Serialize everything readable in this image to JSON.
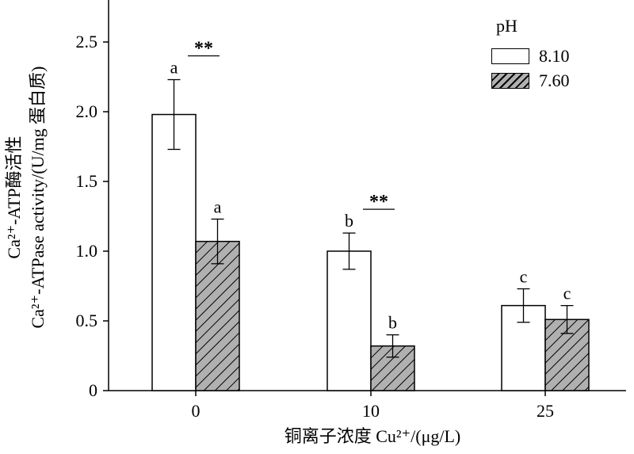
{
  "chart_data": {
    "type": "bar",
    "categories": [
      "0",
      "10",
      "25"
    ],
    "series": [
      {
        "name": "8.10",
        "values": [
          1.98,
          1.0,
          0.61
        ],
        "errors": [
          0.25,
          0.13,
          0.12
        ],
        "letters": [
          "a",
          "b",
          "c"
        ],
        "fill": "white"
      },
      {
        "name": "7.60",
        "values": [
          1.07,
          0.32,
          0.51
        ],
        "errors": [
          0.16,
          0.08,
          0.1
        ],
        "letters": [
          "a",
          "b",
          "c"
        ],
        "fill": "hatched"
      }
    ],
    "significance": [
      {
        "category": "0",
        "label": "**"
      },
      {
        "category": "10",
        "label": "**"
      }
    ],
    "yticks": [
      "0",
      "0.5",
      "1.0",
      "1.5",
      "2.0",
      "2.5"
    ],
    "ylim": [
      0,
      2.75
    ],
    "ylabel_cn": "Ca²⁺-ATP酶活性",
    "ylabel_en": "Ca²⁺-ATPase activity/(U/mg 蛋白质)",
    "xlabel": "铜离子浓度 Cu²⁺/(μg/L)",
    "legend_title": "pH",
    "legend_position": "top-right",
    "colors": {
      "hatch_fill": "#b0b0b0",
      "stroke": "#000000"
    }
  }
}
